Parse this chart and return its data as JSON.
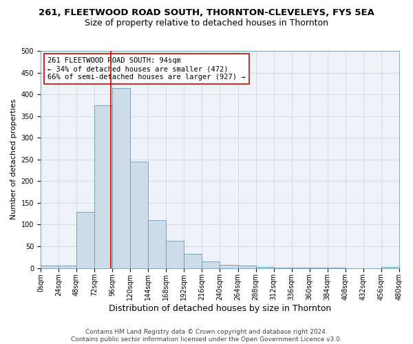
{
  "title": "261, FLEETWOOD ROAD SOUTH, THORNTON-CLEVELEYS, FY5 5EA",
  "subtitle": "Size of property relative to detached houses in Thornton",
  "xlabel": "Distribution of detached houses by size in Thornton",
  "ylabel": "Number of detached properties",
  "bin_edges": [
    0,
    24,
    48,
    72,
    96,
    120,
    144,
    168,
    192,
    216,
    240,
    264,
    288,
    312,
    336,
    360,
    384,
    408,
    432,
    456,
    480
  ],
  "bar_heights": [
    5,
    5,
    130,
    375,
    415,
    245,
    110,
    63,
    33,
    15,
    8,
    5,
    2,
    1,
    1,
    1,
    1,
    0,
    0,
    2
  ],
  "bar_color": "#ccdce8",
  "bar_edge_color": "#6699bb",
  "grid_color": "#d0dde8",
  "background_color": "#eef2f7",
  "property_size": 94,
  "red_line_color": "#cc0000",
  "annotation_line1": "261 FLEETWOOD ROAD SOUTH: 94sqm",
  "annotation_line2": "← 34% of detached houses are smaller (472)",
  "annotation_line3": "66% of semi-detached houses are larger (927) →",
  "annotation_box_color": "#ffffff",
  "annotation_box_edge": "#cc0000",
  "ylim": [
    0,
    500
  ],
  "tick_labels": [
    "0sqm",
    "24sqm",
    "48sqm",
    "72sqm",
    "96sqm",
    "120sqm",
    "144sqm",
    "168sqm",
    "192sqm",
    "216sqm",
    "240sqm",
    "264sqm",
    "288sqm",
    "312sqm",
    "336sqm",
    "360sqm",
    "384sqm",
    "408sqm",
    "432sqm",
    "456sqm",
    "480sqm"
  ],
  "footnote": "Contains HM Land Registry data © Crown copyright and database right 2024.\nContains public sector information licensed under the Open Government Licence v3.0.",
  "title_fontsize": 9.5,
  "subtitle_fontsize": 9,
  "xlabel_fontsize": 9,
  "ylabel_fontsize": 8,
  "tick_fontsize": 7,
  "annotation_fontsize": 7.5,
  "footnote_fontsize": 6.5
}
